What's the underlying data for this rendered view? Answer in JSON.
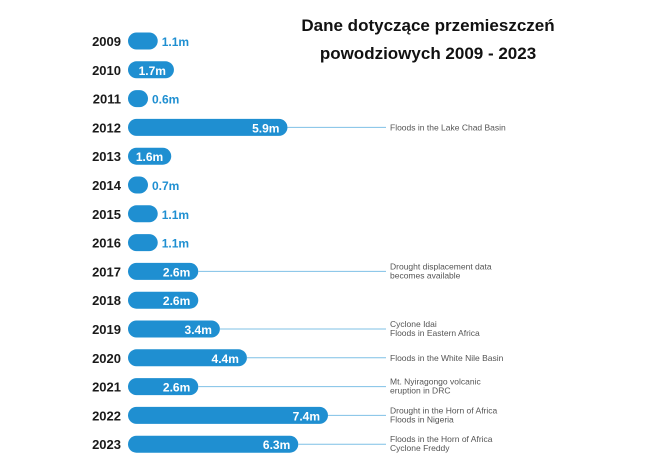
{
  "colors": {
    "bar": "#1f8fd1",
    "annotation_line": "#7fc0e6",
    "year_text": "#1a1a1a",
    "note_text": "#555555",
    "value_text_inside": "#ffffff",
    "value_text_outside": "#1f8fd1"
  },
  "chart_data": {
    "type": "bar",
    "orientation": "horizontal",
    "title": "Dane dotyczące przemieszczeń powodziowych  2009 - 2023",
    "title_lines": [
      "Dane dotyczące przemieszczeń",
      "powodziowych  2009 - 2023"
    ],
    "xlabel": "",
    "ylabel": "",
    "unit_suffix": "m",
    "grid": false,
    "legend": "none",
    "categories": [
      "2009",
      "2010",
      "2011",
      "2012",
      "2013",
      "2014",
      "2015",
      "2016",
      "2017",
      "2018",
      "2019",
      "2020",
      "2021",
      "2022",
      "2023"
    ],
    "values": [
      1.1,
      1.7,
      0.6,
      5.9,
      1.6,
      0.7,
      1.1,
      1.1,
      2.6,
      2.6,
      3.4,
      4.4,
      2.6,
      7.4,
      6.3
    ],
    "value_labels": [
      "1.1m",
      "1.7m",
      "0.6m",
      "5.9m",
      "1.6m",
      "0.7m",
      "1.1m",
      "1.1m",
      "2.6m",
      "2.6m",
      "3.4m",
      "4.4m",
      "2.6m",
      "7.4m",
      "6.3m"
    ],
    "xlim": [
      0,
      7.4
    ],
    "annotations": [
      {
        "category": "2012",
        "lines": [
          "Floods in the Lake Chad Basin"
        ]
      },
      {
        "category": "2017",
        "lines": [
          "Drought displacement data",
          "becomes available"
        ]
      },
      {
        "category": "2019",
        "lines": [
          "Cyclone Idai",
          "Floods in Eastern Africa"
        ]
      },
      {
        "category": "2020",
        "lines": [
          "Floods in the White Nile Basin"
        ]
      },
      {
        "category": "2021",
        "lines": [
          "Mt. Nyiragongo volcanic",
          "eruption in DRC"
        ]
      },
      {
        "category": "2022",
        "lines": [
          "Drought in the Horn of Africa",
          "Floods in Nigeria"
        ]
      },
      {
        "category": "2023",
        "lines": [
          "Floods in the Horn of Africa",
          "Cyclone Freddy"
        ]
      }
    ]
  }
}
